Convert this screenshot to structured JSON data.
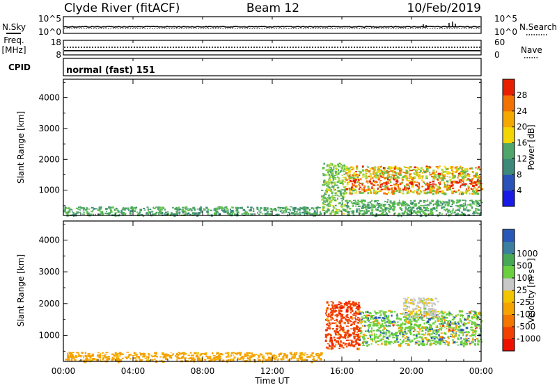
{
  "header": {
    "station": "Clyde River (fitACF)",
    "beam": "Beam 12",
    "date": "10/Feb/2019"
  },
  "sky_panel": {
    "left_label": "N.Sky",
    "right_label": "N.Search",
    "left_ticks": [
      "10^5",
      "10^0"
    ],
    "right_ticks": [
      "10^5",
      "10^0"
    ]
  },
  "freq_panel": {
    "left_label_top": "Freq.",
    "left_label_bottom": "[MHz]",
    "right_label": "Nave",
    "left_ticks": [
      "18",
      "8"
    ],
    "right_ticks": [
      "60",
      "0"
    ]
  },
  "cpid": {
    "label": "CPID",
    "value": "normal (fast) 151"
  },
  "colors": {
    "scale": [
      "#ffffff",
      "#0018d8",
      "#2a46c8",
      "#3d6db7",
      "#4aa06c",
      "#62c34a",
      "#a8d83c",
      "#f0e000",
      "#f7b400",
      "#f58a00",
      "#f05a00",
      "#e61e00"
    ],
    "velocity_scale": [
      "#ee1100",
      "#f24000",
      "#f27600",
      "#f5a300",
      "#f3c400",
      "#c8c8c8",
      "#6bd03f",
      "#46a854",
      "#3b7fa0",
      "#2a58b8"
    ]
  },
  "chart_data": [
    {
      "type": "heatmap",
      "name": "power_panel",
      "xlabel": "",
      "ylabel": "Slant Range [km]",
      "x_range_hours": [
        0,
        24
      ],
      "ylim": [
        180,
        4600
      ],
      "yticks": [
        "1000",
        "2000",
        "3000",
        "4000"
      ],
      "colorbar": {
        "label": "Power [dB]",
        "ticks": [
          "4",
          "8",
          "12",
          "16",
          "20",
          "24",
          "28"
        ],
        "range": [
          0,
          32
        ]
      },
      "echo_regions": [
        {
          "t_start": 0.0,
          "t_end": 14.8,
          "range_low": 200,
          "range_high": 480,
          "value_low": 8,
          "value_high": 14
        },
        {
          "t_start": 14.8,
          "t_end": 16.2,
          "range_low": 250,
          "range_high": 1900,
          "value_low": 10,
          "value_high": 20
        },
        {
          "t_start": 16.2,
          "t_end": 24.0,
          "range_low": 900,
          "range_high": 1800,
          "value_low": 12,
          "value_high": 30
        },
        {
          "t_start": 16.2,
          "t_end": 24.0,
          "range_low": 200,
          "range_high": 700,
          "value_low": 8,
          "value_high": 16
        }
      ]
    },
    {
      "type": "heatmap",
      "name": "velocity_panel",
      "xlabel": "Time UT",
      "ylabel": "Slant Range [km]",
      "x_range_hours": [
        0,
        24
      ],
      "xticks": [
        "00:00",
        "04:00",
        "08:00",
        "12:00",
        "16:00",
        "20:00",
        "00:00"
      ],
      "ylim": [
        180,
        4600
      ],
      "yticks": [
        "1000",
        "2000",
        "3000",
        "4000"
      ],
      "colorbar": {
        "label": "Velocity [m s⁻¹]",
        "ticks": [
          "-1000",
          "-500",
          "-100",
          "-25",
          "25",
          "100",
          "500",
          "1000"
        ]
      },
      "echo_regions": [
        {
          "t_start": 0.0,
          "t_end": 14.8,
          "range_low": 200,
          "range_high": 480,
          "velocity": -100
        },
        {
          "t_start": 15.0,
          "t_end": 17.0,
          "range_low": 600,
          "range_high": 2100,
          "velocity": -500
        },
        {
          "t_start": 17.0,
          "t_end": 24.0,
          "range_low": 700,
          "range_high": 1800,
          "velocity": 100
        },
        {
          "t_start": 19.5,
          "t_end": 21.5,
          "range_low": 1600,
          "range_high": 2200,
          "velocity": 0
        }
      ]
    }
  ]
}
